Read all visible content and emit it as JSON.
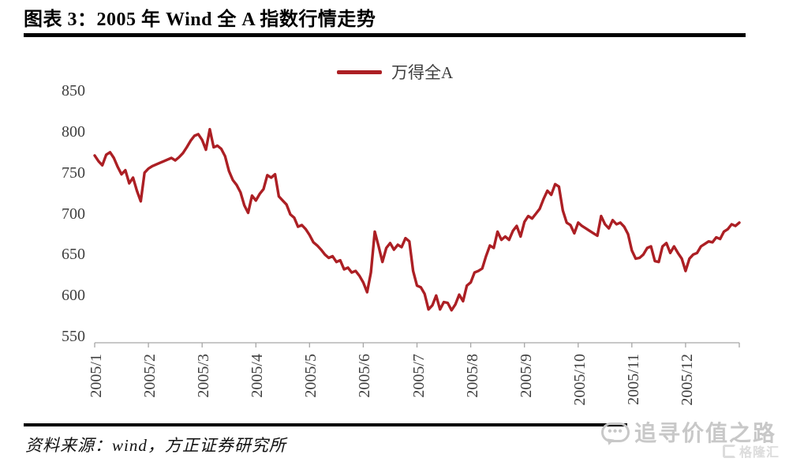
{
  "figure": {
    "title": "图表 3：2005 年 Wind 全 A 指数行情走势",
    "source": "资料来源：wind，方正证券研究所"
  },
  "legend": {
    "label": "万得全A"
  },
  "watermark": {
    "text": "追寻价值之路",
    "bubble_dots": "•••",
    "logo_text": "格隆汇"
  },
  "colors": {
    "line": "#AC1F24",
    "axis": "#A6A6A6",
    "labels": "#3E3E3E",
    "watermark": "#C8C8C8",
    "logo": "#DCDCDC"
  },
  "chart_data": {
    "type": "line",
    "title": "2005 年 Wind 全 A 指数行情走势",
    "xlabel": "",
    "ylabel": "",
    "ylim": [
      550,
      850
    ],
    "y_ticks": [
      850,
      800,
      750,
      700,
      650,
      600,
      550
    ],
    "x_tick_labels": [
      "2005/1",
      "2005/2",
      "2005/3",
      "2005/4",
      "2005/5",
      "2005/6",
      "2005/7",
      "2005/8",
      "2005/9",
      "2005/10",
      "2005/11",
      "2005/12"
    ],
    "grid": false,
    "legend_position": "top-center",
    "points_per_month": 14,
    "series": [
      {
        "name": "万得全A",
        "values": [
          771,
          764,
          759,
          772,
          775,
          768,
          757,
          748,
          753,
          737,
          744,
          728,
          715,
          750,
          755,
          758,
          760,
          762,
          764,
          766,
          768,
          765,
          769,
          774,
          781,
          789,
          795,
          797,
          790,
          778,
          803,
          781,
          783,
          779,
          770,
          752,
          741,
          735,
          726,
          710,
          701,
          722,
          716,
          724,
          730,
          747,
          744,
          748,
          721,
          716,
          711,
          699,
          695,
          684,
          686,
          681,
          674,
          665,
          661,
          656,
          650,
          646,
          648,
          641,
          643,
          632,
          634,
          628,
          630,
          624,
          616,
          604,
          628,
          678,
          660,
          641,
          658,
          664,
          656,
          662,
          659,
          670,
          666,
          630,
          612,
          610,
          602,
          583,
          588,
          600,
          583,
          592,
          591,
          582,
          589,
          601,
          593,
          612,
          616,
          628,
          630,
          633,
          648,
          661,
          658,
          678,
          668,
          672,
          668,
          679,
          685,
          672,
          690,
          697,
          694,
          700,
          706,
          718,
          728,
          723,
          736,
          733,
          704,
          689,
          686,
          676,
          689,
          685,
          682,
          679,
          676,
          673,
          697,
          687,
          682,
          692,
          687,
          689,
          684,
          675,
          655,
          645,
          646,
          650,
          658,
          660,
          642,
          641,
          660,
          664,
          652,
          660,
          652,
          645,
          630,
          645,
          650,
          652,
          660,
          663,
          666,
          665,
          671,
          669,
          678,
          681,
          687,
          685,
          689
        ]
      }
    ]
  }
}
